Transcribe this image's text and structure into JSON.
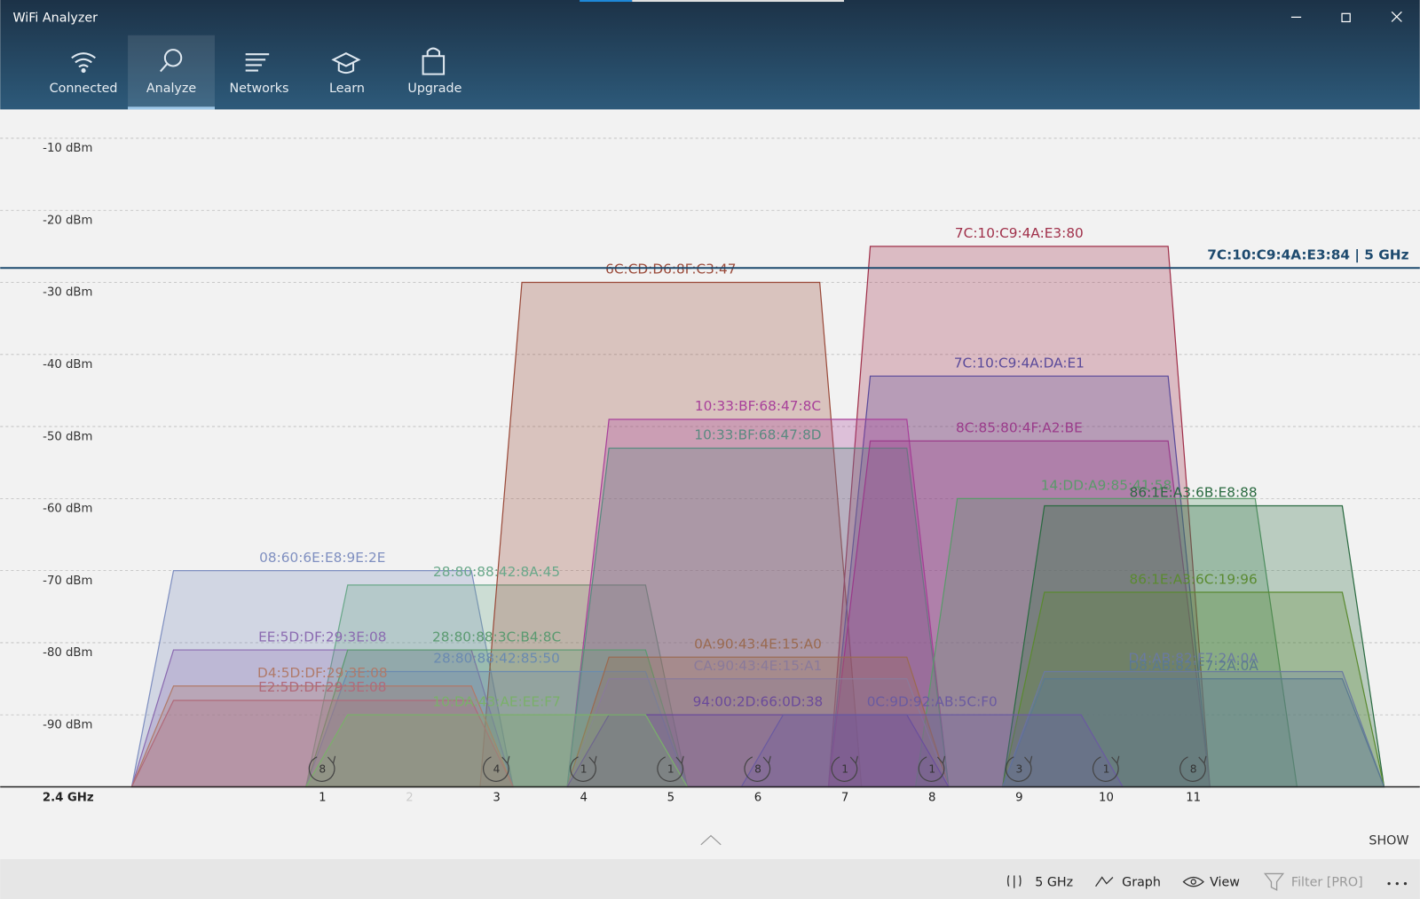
{
  "window": {
    "title": "WiFi Analyzer"
  },
  "nav": {
    "tabs": [
      "Connected",
      "Analyze",
      "Networks",
      "Learn",
      "Upgrade"
    ],
    "selected_index": 1
  },
  "chart_data": {
    "type": "channel-graph",
    "band_label": "2.4 GHz",
    "ylim": [
      -100,
      -6
    ],
    "yticks": [
      {
        "value": -10,
        "label": "-10 dBm"
      },
      {
        "value": -20,
        "label": "-20 dBm"
      },
      {
        "value": -30,
        "label": "-30 dBm"
      },
      {
        "value": -40,
        "label": "-40 dBm"
      },
      {
        "value": -50,
        "label": "-50 dBm"
      },
      {
        "value": -60,
        "label": "-60 dBm"
      },
      {
        "value": -70,
        "label": "-70 dBm"
      },
      {
        "value": -80,
        "label": "-80 dBm"
      },
      {
        "value": -90,
        "label": "-90 dBm"
      }
    ],
    "xlim": [
      -2.7,
      13.6
    ],
    "xticks": [
      1,
      2,
      3,
      4,
      5,
      6,
      7,
      8,
      9,
      10,
      11
    ],
    "grid": true,
    "series": [
      {
        "name": "08:60:6E:E8:9E:2E",
        "color": "#7f8fc0",
        "channel": 1,
        "signal": -70
      },
      {
        "name": "28:80:88:42:8A:45",
        "color": "#6aa88a",
        "channel": 3,
        "signal": -72
      },
      {
        "name": "6C:CD:D6:8F:C3:47",
        "color": "#9a4a3a",
        "channel": 5,
        "signal": -30
      },
      {
        "name": "7C:10:C9:4A:E3:80",
        "color": "#a0304a",
        "channel": 9,
        "signal": -25
      },
      {
        "name": "7C:10:C9:4A:DA:E1",
        "color": "#5a4a9a",
        "channel": 9,
        "signal": -43
      },
      {
        "name": "10:33:BF:68:47:8C",
        "color": "#a8409a",
        "channel": 6,
        "signal": -49
      },
      {
        "name": "10:33:BF:68:47:8D",
        "color": "#5a8a80",
        "channel": 6,
        "signal": -53
      },
      {
        "name": "8C:85:80:4F:A2:BE",
        "color": "#9a3a8a",
        "channel": 9,
        "signal": -52
      },
      {
        "name": "14:DD:A9:85:41:58",
        "color": "#5a9a6a",
        "channel": 10,
        "signal": -60
      },
      {
        "name": "86:1E:A3:6B:E8:88",
        "color": "#2a6a40",
        "channel": 11,
        "signal": -61
      },
      {
        "name": "86:1E:A3:6C:19:96",
        "color": "#5a8a30",
        "channel": 11,
        "signal": -73
      },
      {
        "name": "D4:AB:82:F7:2A:0A",
        "color": "#6a7aa0",
        "channel": 11,
        "signal": -84
      },
      {
        "name": "D8:AB:82:F7:2A:0A",
        "color": "#5a7a90",
        "channel": 11,
        "signal": -85
      },
      {
        "name": "EE:5D:DF:29:3E:08",
        "color": "#8a6ab0",
        "channel": 1,
        "signal": -81
      },
      {
        "name": "28:80:88:3C:B4:8C",
        "color": "#5a9a70",
        "channel": 3,
        "signal": -81
      },
      {
        "name": "28:80:88:42:85:50",
        "color": "#6a8ab0",
        "channel": 3,
        "signal": -84
      },
      {
        "name": "0A:90:43:4E:15:A0",
        "color": "#9a6a50",
        "channel": 6,
        "signal": -82
      },
      {
        "name": "CA:90:43:4E:15:A1",
        "color": "#8a7a9a",
        "channel": 6,
        "signal": -85
      },
      {
        "name": "94:00:2D:66:0D:38",
        "color": "#6a4a9a",
        "channel": 6,
        "signal": -90
      },
      {
        "name": "0C:9D:92:AB:5C:F0",
        "color": "#6a5aa0",
        "channel": 8,
        "signal": -90
      },
      {
        "name": "D4:5D:DF:29:3E:08",
        "color": "#b07a6a",
        "channel": 1,
        "signal": -86
      },
      {
        "name": "E2:5D:DF:29:3E:08",
        "color": "#b06a7a",
        "channel": 1,
        "signal": -88
      },
      {
        "name": "10:DA:43:AE:EE:F7",
        "color": "#7ab06a",
        "channel": 3,
        "signal": -90
      }
    ],
    "reference_line": {
      "label": "7C:10:C9:4A:E3:84 | 5 GHz",
      "value": -28,
      "color": "#1d4a6e"
    },
    "channel_counts": {
      "channels": [
        1,
        3,
        4,
        5,
        6,
        7,
        8,
        9,
        10,
        11
      ],
      "values": [
        8,
        4,
        1,
        1,
        8,
        1,
        1,
        3,
        1,
        8
      ]
    }
  },
  "show_label": "SHOW",
  "toolbar": [
    "5 GHz",
    "Graph",
    "View",
    "Filter [PRO]"
  ]
}
